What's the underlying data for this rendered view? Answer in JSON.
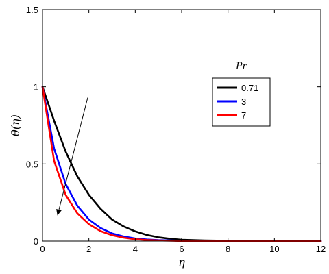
{
  "chart_data": {
    "type": "line",
    "xlabel": "η",
    "ylabel": "θ(η)",
    "xlim": [
      0,
      12
    ],
    "ylim": [
      0,
      1.5
    ],
    "xticks": [
      0,
      2,
      4,
      6,
      8,
      10,
      12
    ],
    "yticks": [
      0,
      0.5,
      1,
      1.5
    ],
    "ytick_labels": [
      "0",
      "0.5",
      "1",
      "1.5"
    ],
    "grid": false,
    "legend": {
      "title": "Pr",
      "placement": "right"
    },
    "series": [
      {
        "name": "0.71",
        "color": "#000000",
        "x": [
          0,
          0.5,
          1,
          1.5,
          2,
          2.5,
          3,
          3.5,
          4,
          4.5,
          5,
          5.5,
          6,
          7,
          8,
          9,
          10,
          11,
          12
        ],
        "y": [
          1,
          0.78,
          0.58,
          0.42,
          0.3,
          0.21,
          0.14,
          0.095,
          0.063,
          0.04,
          0.025,
          0.015,
          0.009,
          0.004,
          0.002,
          0.001,
          0,
          0,
          0
        ]
      },
      {
        "name": "3",
        "color": "#0000ff",
        "x": [
          0,
          0.5,
          1,
          1.5,
          2,
          2.5,
          3,
          3.5,
          4,
          4.5,
          5,
          6,
          7,
          8,
          10,
          12
        ],
        "y": [
          1,
          0.6,
          0.37,
          0.23,
          0.14,
          0.085,
          0.05,
          0.03,
          0.017,
          0.01,
          0.006,
          0.002,
          0.001,
          0,
          0,
          0
        ]
      },
      {
        "name": "7",
        "color": "#ff0000",
        "x": [
          0,
          0.5,
          1,
          1.5,
          2,
          2.5,
          3,
          3.5,
          4,
          4.5,
          5,
          6,
          7,
          8,
          10,
          12
        ],
        "y": [
          1,
          0.52,
          0.3,
          0.18,
          0.11,
          0.065,
          0.038,
          0.022,
          0.012,
          0.007,
          0.004,
          0.001,
          0,
          0,
          0,
          0
        ]
      }
    ],
    "annotations": [
      {
        "type": "arrow",
        "from": [
          1.95,
          0.93
        ],
        "to": [
          0.65,
          0.17
        ],
        "meaning": "increasing Pr"
      }
    ]
  }
}
